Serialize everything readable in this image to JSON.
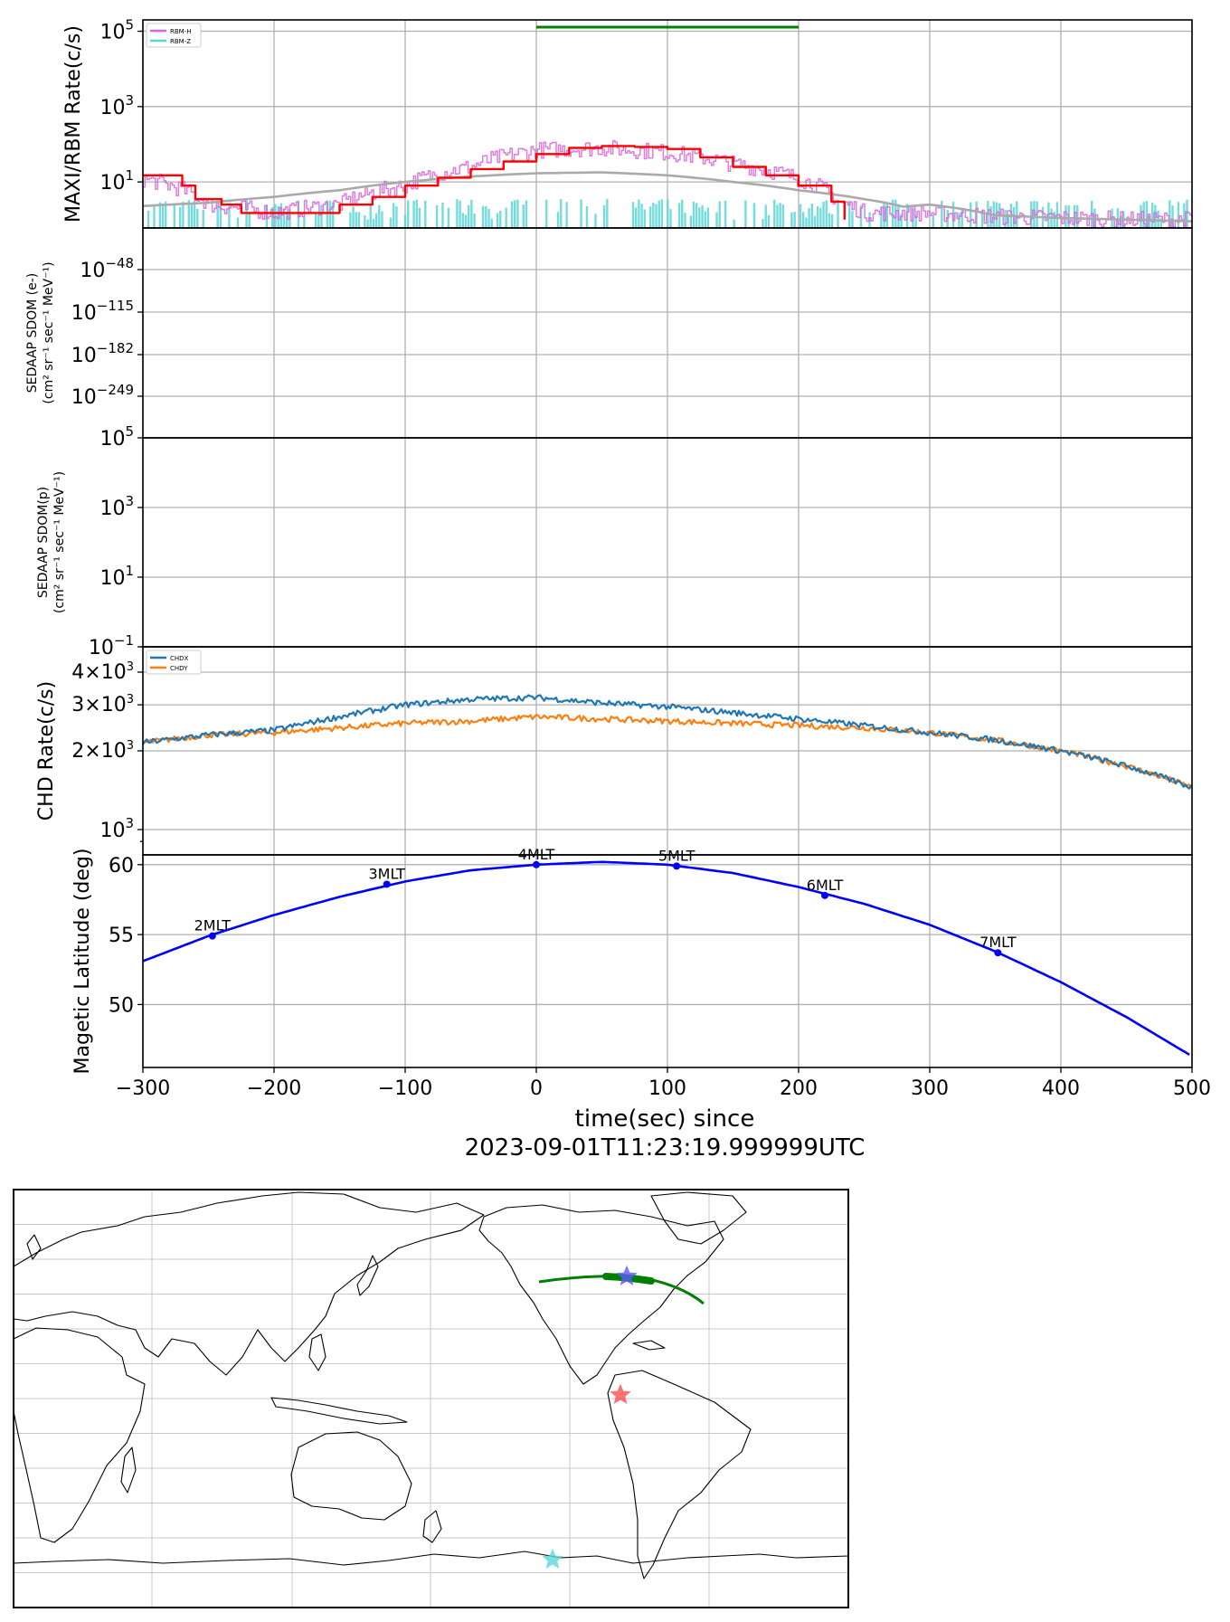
{
  "figure": {
    "xlabel": "time(sec) since",
    "xlabel_line2": "2023-09-01T11:23:19.999999UTC",
    "xticks": [
      "−300",
      "−200",
      "−100",
      "0",
      "100",
      "200",
      "300",
      "400",
      "500"
    ]
  },
  "chart_data": [
    {
      "id": "rbm",
      "type": "line",
      "ylabel": "MAXI/RBM Rate(c/s)",
      "yscale": "log",
      "ylim": [
        0.6,
        200000
      ],
      "yticks": [
        "10^5",
        "10^3",
        "10^1"
      ],
      "xlim": [
        -300,
        500
      ],
      "legend": [
        "RBM-H",
        "RBM-Z"
      ],
      "legend_loc": "upper left",
      "series": [
        {
          "name": "RBM-H",
          "color": "#d966d6",
          "style": "noisy step",
          "x": [
            -300,
            -250,
            -200,
            -150,
            -100,
            -50,
            0,
            50,
            100,
            150,
            200,
            230,
            250,
            300,
            350,
            400,
            450,
            500
          ],
          "values": [
            12,
            2.5,
            1.5,
            2.5,
            8,
            25,
            70,
            80,
            60,
            30,
            12,
            3,
            1.5,
            1.5,
            1.2,
            1.1,
            1.0,
            1.0
          ]
        },
        {
          "name": "RBM-Z",
          "color": "#5cd6d6",
          "style": "noisy bars",
          "baseline": 1.0,
          "max": 3.5
        },
        {
          "name": "",
          "color": "#ff0000",
          "style": "binned step",
          "x": [
            -300,
            -270,
            -260,
            -240,
            -225,
            -200,
            -175,
            -150,
            -125,
            -100,
            -75,
            -50,
            -25,
            0,
            25,
            50,
            75,
            100,
            125,
            150,
            175,
            200,
            225,
            235
          ],
          "values": [
            15,
            8,
            3.5,
            2.5,
            1.5,
            1.5,
            1.5,
            2.5,
            4,
            8,
            13,
            22,
            35,
            55,
            80,
            90,
            85,
            75,
            45,
            25,
            15,
            8,
            3,
            1
          ]
        },
        {
          "name": "",
          "color": "#aaaaaa",
          "style": "smooth",
          "x": [
            -300,
            -250,
            -200,
            -150,
            -100,
            -50,
            0,
            50,
            100,
            150,
            200,
            250,
            280,
            300,
            350,
            400,
            500
          ],
          "values": [
            2.3,
            2.8,
            4,
            6,
            10,
            14,
            17,
            18,
            15,
            10,
            6,
            3.5,
            2.2,
            2.5,
            1.3,
            1.1,
            0.9
          ]
        },
        {
          "name": "",
          "color": "#008000",
          "style": "hbar",
          "x": [
            0,
            200
          ],
          "values": [
            150000,
            150000
          ]
        }
      ]
    },
    {
      "id": "sdom_e",
      "type": "line",
      "ylabel": "SEDAAP SDOM (e-)",
      "ylabel_units": "(cm² sr⁻¹ sec⁻¹ MeV⁻¹)",
      "yscale": "log",
      "yticks": [
        "10^-48",
        "10^-115",
        "10^-182",
        "10^-249"
      ],
      "series": []
    },
    {
      "id": "sdom_p",
      "type": "line",
      "ylabel": "SEDAAP SDOM(p)",
      "ylabel_units": "(cm² sr⁻¹ sec⁻¹ MeV⁻¹)",
      "yscale": "log",
      "ylim": [
        0.1,
        100000
      ],
      "yticks": [
        "10^5",
        "10^3",
        "10^1",
        "10^-1"
      ],
      "series": []
    },
    {
      "id": "chd",
      "type": "line",
      "ylabel": "CHD Rate(c/s)",
      "yscale": "log",
      "ylim": [
        800,
        5000
      ],
      "yticks": [
        "4×10^3",
        "3×10^3",
        "2×10^3",
        "10^3"
      ],
      "legend": [
        "CHDX",
        "CHDY"
      ],
      "legend_loc": "upper left",
      "series": [
        {
          "name": "CHDX",
          "color": "#1f77b4",
          "x": [
            -300,
            -250,
            -200,
            -150,
            -100,
            -50,
            0,
            50,
            100,
            150,
            200,
            250,
            300,
            350,
            400,
            450,
            500
          ],
          "values": [
            2150,
            2300,
            2400,
            2700,
            3000,
            3150,
            3200,
            3050,
            2950,
            2800,
            2650,
            2500,
            2350,
            2200,
            2000,
            1750,
            1450
          ]
        },
        {
          "name": "CHDY",
          "color": "#ff7f0e",
          "x": [
            -300,
            -250,
            -200,
            -150,
            -100,
            -50,
            0,
            50,
            100,
            150,
            200,
            250,
            300,
            350,
            400,
            450,
            500
          ],
          "values": [
            2150,
            2300,
            2350,
            2450,
            2550,
            2600,
            2700,
            2650,
            2600,
            2550,
            2500,
            2450,
            2350,
            2200,
            2000,
            1750,
            1450
          ]
        }
      ]
    },
    {
      "id": "maglat",
      "type": "line",
      "ylabel": "Magetic Latitude  (deg)",
      "ylim": [
        45.5,
        60.7
      ],
      "yticks": [
        "60",
        "55",
        "50"
      ],
      "xlim": [
        -300,
        500
      ],
      "series": [
        {
          "name": "",
          "color": "#0000ff",
          "x": [
            -300,
            -250,
            -200,
            -150,
            -100,
            -50,
            0,
            50,
            100,
            150,
            200,
            250,
            300,
            350,
            400,
            450,
            500
          ],
          "values": [
            53.1,
            54.9,
            56.4,
            57.7,
            58.8,
            59.6,
            60.0,
            60.2,
            60.0,
            59.4,
            58.4,
            57.2,
            55.7,
            53.8,
            51.6,
            49.1,
            46.3
          ]
        }
      ],
      "mlt_labels": [
        {
          "label": "2MLT",
          "x": -247,
          "y": 54.9
        },
        {
          "label": "3MLT",
          "x": -114,
          "y": 58.6
        },
        {
          "label": "4MLT",
          "x": 0,
          "y": 60.0
        },
        {
          "label": "5MLT",
          "x": 107,
          "y": 59.9
        },
        {
          "label": "6MLT",
          "x": 220,
          "y": 57.8
        },
        {
          "label": "7MLT",
          "x": 352,
          "y": 53.7
        }
      ]
    }
  ],
  "map": {
    "track_color": "#008000",
    "stars": [
      {
        "name": "blue-star",
        "color": "#5a5aff"
      },
      {
        "name": "red-star",
        "color": "#ff5050"
      },
      {
        "name": "cyan-star",
        "color": "#5cd6d6"
      }
    ]
  }
}
